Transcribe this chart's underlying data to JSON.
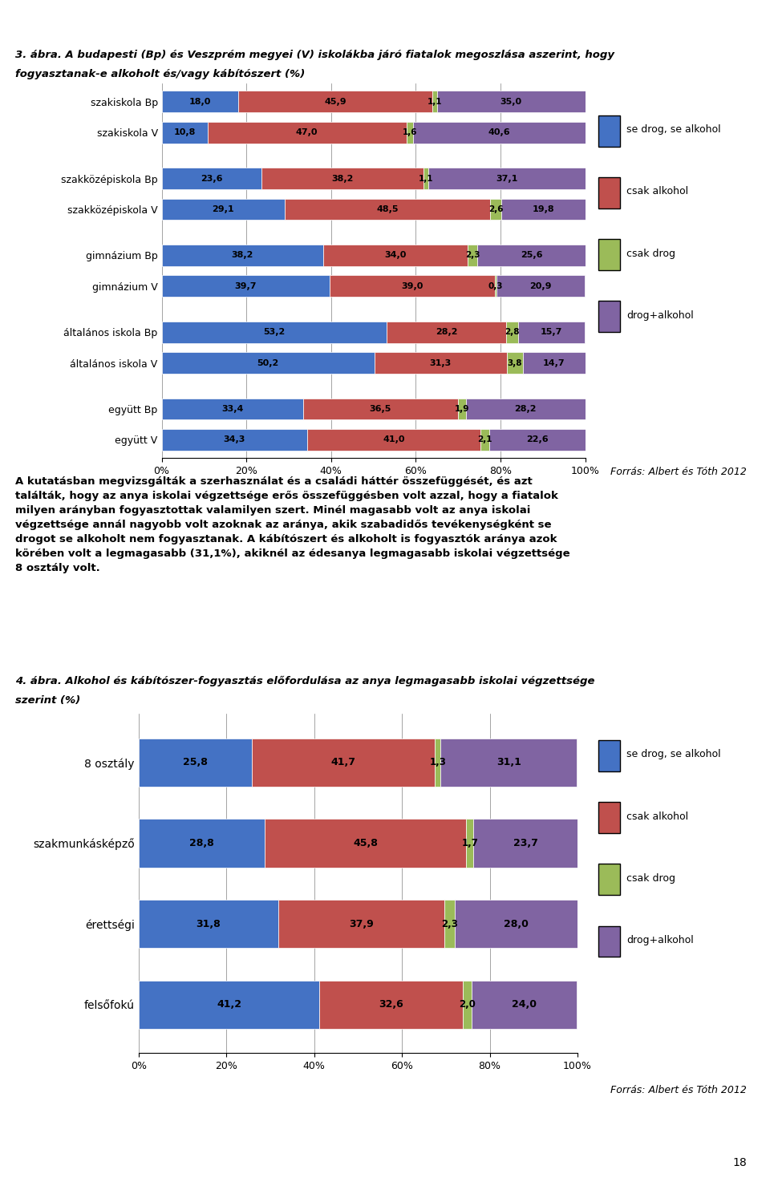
{
  "chart1": {
    "title_line1": "3. ábra. A budapesti (Bp) és Veszprém megyei (V) iskolákba járó fiatalok megoszlása aszerint, hogy",
    "title_line2": "fogyasztanak-e alkoholt és/vagy kábítószert (%)",
    "categories": [
      "szakiskola Bp",
      "szakiskola V",
      "szakközépiskola Bp",
      "szakközépiskola V",
      "gimnázium Bp",
      "gimnázium V",
      "általános iskola Bp",
      "általános iskola V",
      "együtt Bp",
      "együtt V"
    ],
    "se_drog": [
      18.0,
      10.8,
      23.6,
      29.1,
      38.2,
      39.7,
      53.2,
      50.2,
      33.4,
      34.3
    ],
    "csak_alkohol": [
      45.9,
      47.0,
      38.2,
      48.5,
      34.0,
      39.0,
      28.2,
      31.3,
      36.5,
      41.0
    ],
    "csak_drog": [
      1.1,
      1.6,
      1.1,
      2.6,
      2.3,
      0.3,
      2.8,
      3.8,
      1.9,
      2.1
    ],
    "drog_alkohol": [
      35.0,
      40.6,
      37.1,
      19.8,
      25.6,
      20.9,
      15.7,
      14.7,
      28.2,
      22.6
    ],
    "forras": "Forrás: Albert és Tóth 2012",
    "colors": {
      "se_drog": "#4472C4",
      "csak_alkohol": "#C0504D",
      "csak_drog": "#9BBB59",
      "drog_alkohol": "#8064A2"
    },
    "legend_labels": [
      "se drog, se alkohol",
      "csak alkohol",
      "csak drog",
      "drog+alkohol"
    ]
  },
  "body_lines": [
    "A kutatásban megvizsgálták a szerhasználat és a családi háttér összefüggését, és azt",
    "találták, hogy az anya iskolai végzettsége erős összefüggésben volt azzal, hogy a fiatalok",
    "milyen arányban fogyasztottak valamilyen szert. Minél magasabb volt az anya iskolai",
    "végzettsége annál nagyobb volt azoknak az aránya, akik szabadidős tevékenységként se",
    "drogot se alkoholt nem fogyasztanak. A kábítószert és alkoholt is fogyasztók aránya azok",
    "körében volt a legmagasabb (31,1%), akiknél az édesanya legmagasabb iskolai végzettsége",
    "8 osztály volt."
  ],
  "chart2": {
    "title_line1": "4. ábra. Alkohol és kábítószer-fogyasztás előfordulása az anya legmagasabb iskolai végzettsége",
    "title_line2": "szerint (%)",
    "categories": [
      "8 osztály",
      "szakmunkásképző",
      "érettségi",
      "felsőfokú"
    ],
    "se_drog": [
      25.8,
      28.8,
      31.8,
      41.2
    ],
    "csak_alkohol": [
      41.7,
      45.8,
      37.9,
      32.6
    ],
    "csak_drog": [
      1.3,
      1.7,
      2.3,
      2.0
    ],
    "drog_alkohol": [
      31.1,
      23.7,
      28.0,
      24.0
    ],
    "forras": "Forrás: Albert és Tóth 2012",
    "colors": {
      "se_drog": "#4472C4",
      "csak_alkohol": "#C0504D",
      "csak_drog": "#9BBB59",
      "drog_alkohol": "#8064A2"
    },
    "legend_labels": [
      "se drog, se alkohol",
      "csak alkohol",
      "csak drog",
      "drog+alkohol"
    ]
  },
  "page_number": "18",
  "background_color": "#FFFFFF"
}
